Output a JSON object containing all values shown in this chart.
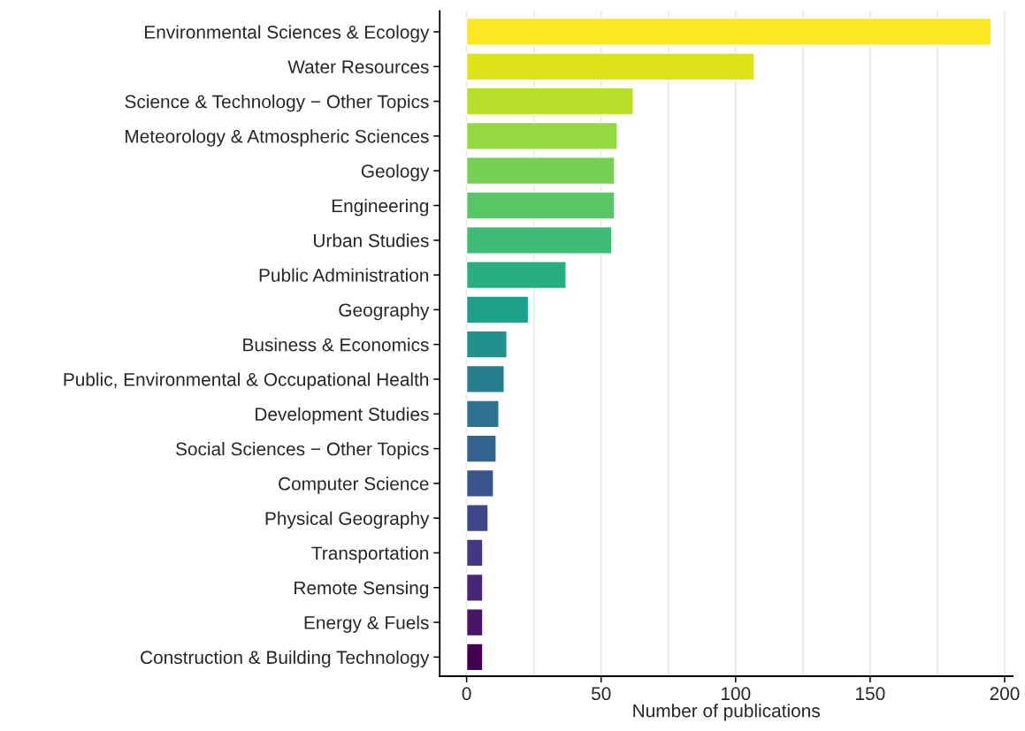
{
  "chart_data": {
    "type": "bar",
    "orientation": "horizontal",
    "xlabel": "Number of publications",
    "categories": [
      "Environmental Sciences & Ecology",
      "Water Resources",
      "Science & Technology − Other Topics",
      "Meteorology & Atmospheric Sciences",
      "Geology",
      "Engineering",
      "Urban Studies",
      "Public Administration",
      "Geography",
      "Business & Economics",
      "Public, Environmental & Occupational Health",
      "Development Studies",
      "Social Sciences − Other Topics",
      "Computer Science",
      "Physical Geography",
      "Transportation",
      "Remote Sensing",
      "Energy & Fuels",
      "Construction & Building Technology"
    ],
    "values": [
      195,
      107,
      62,
      56,
      55,
      55,
      54,
      37,
      23,
      15,
      14,
      12,
      11,
      10,
      8,
      6,
      6,
      6,
      6
    ],
    "colors": [
      "#fde725",
      "#dde318",
      "#b8de29",
      "#95d840",
      "#75d054",
      "#57c766",
      "#3fbc73",
      "#28ae80",
      "#1fa088",
      "#21918c",
      "#287d8e",
      "#2d718e",
      "#32648e",
      "#39558c",
      "#3f4788",
      "#453781",
      "#482576",
      "#481467",
      "#440154"
    ],
    "xlim": [
      -10,
      203
    ],
    "xticks": [
      0,
      50,
      100,
      150,
      200
    ],
    "grid": "x"
  }
}
